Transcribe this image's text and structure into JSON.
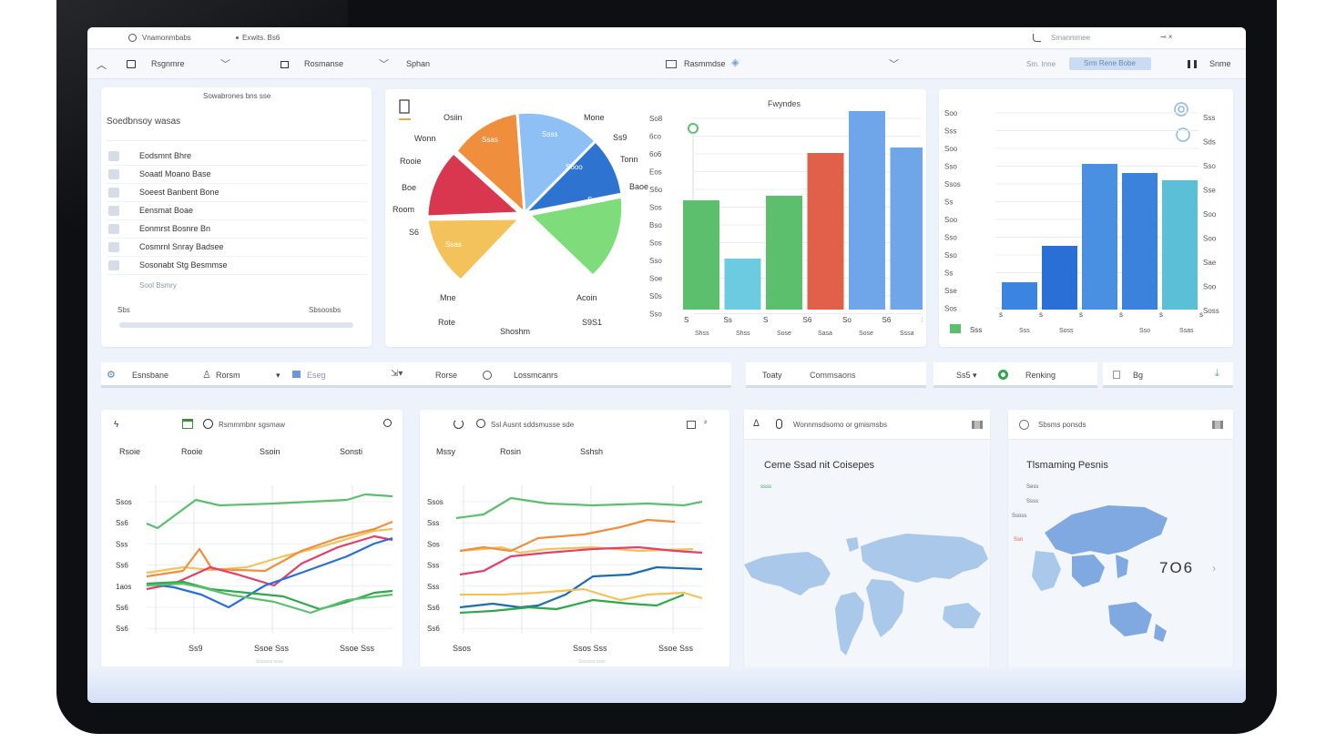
{
  "topbar": {
    "app_title": "Vnamonmbabs",
    "location": "Exwits. Bs6",
    "search_label": "Smanmmee",
    "controls": "⊸  ×"
  },
  "toolbar": {
    "menu1": "Rsgnmre",
    "menu2": "Rosmanse",
    "menu3": "Sphan",
    "center_label": "Rasmmdse",
    "sort_label": "Sm. Inne",
    "pill_label": "Srm Rene Bobe",
    "user_label": "Snme"
  },
  "list_panel": {
    "header": "Sowabrones bns sse",
    "title": "Soedbnsoy wasas",
    "items": [
      "Eodsmnt Bhre",
      "Soaatl Moano Base",
      "Soeest Banbent Bone",
      "Eensmat Boae",
      "Eonmrst Bosnre Bn",
      "Cosmrnl Snray Badsee",
      "Sosonabt Stg Besmmse"
    ],
    "footer_note": "Sool Bsmry",
    "footer_left": "Sbs",
    "footer_right": "Sbsoosbs"
  },
  "pie_chart": {
    "slice_labels": [
      "Ssas",
      "Ssss",
      "Snsa",
      "Ssas",
      "Sooo"
    ],
    "outer_labels": [
      "Osiin",
      "Wonn",
      "Rooie",
      "Boe",
      "Room",
      "S6",
      "Mone",
      "Ss9",
      "Tonn",
      "Baoe",
      "Mne",
      "Rote",
      "Acoin",
      "S9S1",
      "Shoshm"
    ]
  },
  "bar_chart1": {
    "title": "Fwyndes",
    "y_ticks": [
      "So8",
      "6co",
      "6o6",
      "Eos",
      "S6o",
      "Sos",
      "Bso",
      "Sos",
      "Sso",
      "Soe",
      "S0s",
      "Sso"
    ],
    "x_ticks": [
      "S",
      "Ss",
      "S",
      "S6",
      "So",
      "S6",
      "S"
    ],
    "x_labels": [
      "Shss",
      "Shss",
      "Sose",
      "Sasa",
      "Sose",
      "Sssa"
    ]
  },
  "bar_chart2": {
    "y_left": [
      "Soo",
      "Sss",
      "Soo",
      "Sso",
      "Ssos",
      "Ss",
      "Soo",
      "Sso",
      "Sso",
      "Ss",
      "Sse",
      "Sos"
    ],
    "y_right": [
      "Sss",
      "Sds",
      "Sso",
      "Sse",
      "Soo",
      "Soo",
      "Sae",
      "Soo",
      "Soss"
    ],
    "x_ticks": [
      "s",
      "s",
      "s",
      "s",
      "s",
      "s"
    ],
    "x_labels": [
      "Sss",
      "Soss",
      "Sso",
      "Ssas"
    ],
    "legend": "Sss"
  },
  "filters": {
    "f1": "Esnsbane",
    "f2": "Rorsm",
    "f3": "Eseg",
    "f4": "Rorse",
    "f5": "Lossmcanrs",
    "f6": "Toaty",
    "f7": "Commsaons",
    "f8": "Ss5",
    "f9": "Renking",
    "f10": "Bg"
  },
  "line_chart1": {
    "title": "Rsmmmbnr sgsmaw",
    "col_labels": [
      "Rsoie",
      "Rooie",
      "Ssoin",
      "Sonsti"
    ],
    "y_ticks": [
      "Ssos",
      "Ss6",
      "Sss",
      "Ss6",
      "1aos",
      "Ss6",
      "Ss6"
    ],
    "x_labels": [
      "Ss9",
      "Ssoe Sss",
      "Ssoe Sss"
    ],
    "x_caption": "Sssssss ssss"
  },
  "line_chart2": {
    "title": "Ssl Ausnt sddsmusse sde",
    "col_labels": [
      "Mssy",
      "Rosin",
      "Sshsh"
    ],
    "y_ticks": [
      "Ssos",
      "Sss",
      "Sos",
      "Sss",
      "Sss",
      "Ss6",
      "Ss6"
    ],
    "x_labels": [
      "Ssos",
      "Ssos Sss",
      "Ssoe Sss"
    ],
    "x_caption": "Sssssss ssss"
  },
  "map1": {
    "header": "Wonnmsdsomo or gmismsbs",
    "title": "Ceme Ssad nit Coisepes",
    "tag": "ssss"
  },
  "map2": {
    "header": "Sbsms ponsds",
    "title": "Tlsmaming Pesnis",
    "tag": "Sess",
    "value": "7O6",
    "small1": "Ssss",
    "small2": "Ssoss",
    "small3": "Ssn"
  },
  "colors": {
    "green": "#5cbf6e",
    "teal": "#6ccbe0",
    "red": "#e0604a",
    "blue": "#6fa6ea",
    "deep_blue": "#2a6fd6",
    "orange": "#ef8f3d",
    "yellow": "#f3c25a",
    "crimson": "#d9364f",
    "light_blue": "#8fc0f5",
    "light_green": "#7fdc7a"
  }
}
